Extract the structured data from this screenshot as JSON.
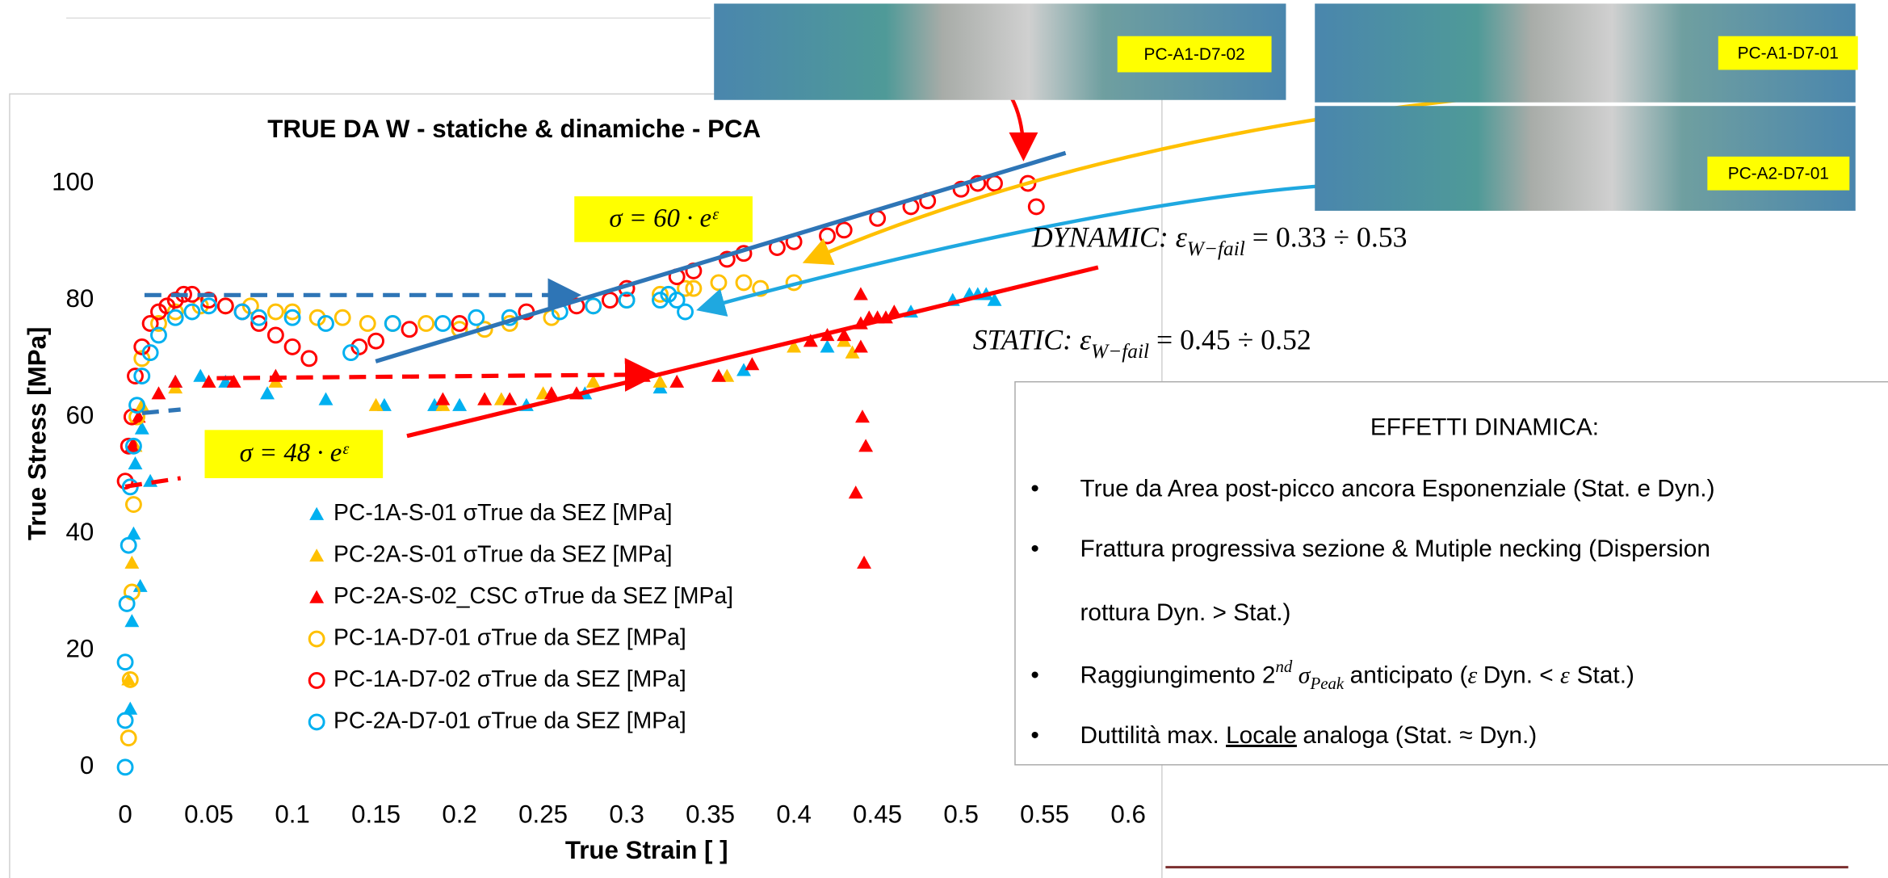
{
  "chart_data": {
    "type": "scatter",
    "title": "TRUE DA W - statiche & dinamiche - PCA",
    "x_label": "True Strain [  ]",
    "y_label": "True Stress [MPa]",
    "xlim": [
      0,
      0.6
    ],
    "ylim": [
      0,
      105
    ],
    "xticks": [
      0,
      0.05,
      0.1,
      0.15,
      0.2,
      0.25,
      0.3,
      0.35,
      0.4,
      0.45,
      0.5,
      0.55,
      0.6
    ],
    "yticks": [
      0,
      20,
      40,
      60,
      80,
      100
    ],
    "grid": false,
    "series": [
      {
        "name": "PC-1A-S-01 σTrue da SEZ [MPa]",
        "color": "#00b0f0",
        "marker": "triangle",
        "x": [
          0.003,
          0.004,
          0.005,
          0.006,
          0.009,
          0.01,
          0.015,
          0.03,
          0.045,
          0.06,
          0.085,
          0.12,
          0.155,
          0.185,
          0.2,
          0.24,
          0.275,
          0.32,
          0.37,
          0.42,
          0.47,
          0.495,
          0.505,
          0.51,
          0.515,
          0.52
        ],
        "y": [
          10,
          25,
          40,
          52,
          31,
          58,
          49,
          66,
          67,
          66,
          64,
          63,
          62,
          62,
          62,
          62,
          64,
          65,
          68,
          72,
          78,
          80,
          81,
          81,
          81,
          80
        ]
      },
      {
        "name": "PC-2A-S-01 σTrue da SEZ [MPa]",
        "color": "#ffc000",
        "marker": "triangle",
        "x": [
          0.002,
          0.004,
          0.006,
          0.01,
          0.03,
          0.05,
          0.09,
          0.15,
          0.19,
          0.215,
          0.225,
          0.25,
          0.28,
          0.32,
          0.36,
          0.4,
          0.43,
          0.435
        ],
        "y": [
          15,
          35,
          55,
          62,
          65,
          66,
          66,
          62,
          62,
          63,
          63,
          64,
          66,
          66,
          67,
          72,
          73,
          71
        ]
      },
      {
        "name": "PC-2A-S-02_CSC σTrue da SEZ [MPa]",
        "color": "#ff0000",
        "marker": "triangle",
        "x": [
          0.004,
          0.008,
          0.02,
          0.03,
          0.05,
          0.065,
          0.09,
          0.19,
          0.215,
          0.23,
          0.255,
          0.27,
          0.31,
          0.33,
          0.355,
          0.375,
          0.41,
          0.42,
          0.43,
          0.44,
          0.445,
          0.45,
          0.455,
          0.46,
          0.44,
          0.44,
          0.441,
          0.443,
          0.437,
          0.442
        ],
        "y": [
          55,
          60,
          64,
          66,
          66,
          66,
          67,
          63,
          63,
          63,
          64,
          64,
          67,
          66,
          67,
          69,
          73,
          74,
          74,
          76,
          77,
          77,
          77,
          78,
          81,
          72,
          60,
          55,
          47,
          35
        ]
      },
      {
        "name": "PC-1A-D7-01 σTrue da SEZ [MPa]",
        "color": "#ffc000",
        "marker": "circle",
        "x": [
          0.002,
          0.003,
          0.004,
          0.005,
          0.007,
          0.01,
          0.02,
          0.03,
          0.045,
          0.06,
          0.075,
          0.09,
          0.1,
          0.115,
          0.13,
          0.145,
          0.16,
          0.18,
          0.2,
          0.215,
          0.23,
          0.255,
          0.28,
          0.3,
          0.32,
          0.335,
          0.34,
          0.355,
          0.37,
          0.38,
          0.4
        ],
        "y": [
          5,
          15,
          30,
          45,
          60,
          70,
          76,
          78,
          79,
          79,
          79,
          78,
          78,
          77,
          77,
          76,
          76,
          76,
          75,
          75,
          76,
          77,
          79,
          80,
          81,
          82,
          82,
          83,
          83,
          82,
          83
        ]
      },
      {
        "name": "PC-1A-D7-02 σTrue da SEZ [MPa]",
        "color": "#ff0000",
        "marker": "circle",
        "x": [
          0,
          0.002,
          0.004,
          0.006,
          0.01,
          0.015,
          0.02,
          0.025,
          0.03,
          0.035,
          0.04,
          0.05,
          0.06,
          0.07,
          0.08,
          0.09,
          0.1,
          0.11,
          0.14,
          0.15,
          0.17,
          0.2,
          0.24,
          0.27,
          0.29,
          0.3,
          0.33,
          0.34,
          0.36,
          0.37,
          0.39,
          0.4,
          0.42,
          0.43,
          0.45,
          0.47,
          0.48,
          0.5,
          0.51,
          0.52,
          0.54,
          0.545
        ],
        "y": [
          49,
          55,
          60,
          67,
          72,
          76,
          78,
          79,
          80,
          81,
          81,
          80,
          79,
          78,
          76,
          74,
          72,
          70,
          72,
          73,
          75,
          76,
          78,
          79,
          80,
          82,
          84,
          85,
          87,
          88,
          89,
          90,
          91,
          92,
          94,
          96,
          97,
          99,
          100,
          100,
          100,
          96
        ]
      },
      {
        "name": "PC-2A-D7-01   σTrue da SEZ [MPa]",
        "color": "#00b0f0",
        "marker": "circle",
        "x": [
          0,
          0,
          0,
          0.001,
          0.002,
          0.003,
          0.005,
          0.007,
          0.01,
          0.015,
          0.02,
          0.03,
          0.04,
          0.05,
          0.07,
          0.08,
          0.1,
          0.12,
          0.135,
          0.16,
          0.19,
          0.21,
          0.23,
          0.26,
          0.28,
          0.3,
          0.32,
          0.325,
          0.33,
          0.335
        ],
        "y": [
          0,
          8,
          18,
          28,
          38,
          48,
          55,
          62,
          67,
          71,
          74,
          77,
          78,
          79,
          78,
          77,
          77,
          76,
          71,
          76,
          76,
          77,
          77,
          78,
          79,
          80,
          80,
          81,
          80,
          78
        ]
      }
    ],
    "annotations": [
      "σ = 60 · eᵋ",
      "σ = 48 · eᵋ"
    ]
  },
  "photos": [
    "PC-A1-D7-02",
    "PC-A1-D7-01",
    "PC-A2-D7-01"
  ],
  "strain_notes": {
    "dynamic": {
      "label": "DYNAMIC:",
      "symbol": "ε",
      "subscript": "W−fail",
      "value": "= 0.33 ÷ 0.53"
    },
    "static": {
      "label": "STATIC:",
      "symbol": "ε",
      "subscript": "W−fail",
      "value": "= 0.45 ÷ 0.52"
    }
  },
  "text_box": {
    "title": "EFFETTI DINAMICA:",
    "bullets": [
      "True da Area post-picco ancora Esponenziale (Stat. e Dyn.)",
      [
        "Frattura progressiva sezione & Mutiple necking (Dispersion",
        "rottura Dyn. > Stat.)"
      ],
      [
        "Raggiungimento 2",
        "nd",
        "σ",
        "Peak",
        "anticipato (",
        "ε",
        "Dyn. < ",
        "ε",
        "Stat.)"
      ],
      [
        "Duttilità max. ",
        "Locale",
        "analoga (Stat. ≈ Dyn.)"
      ]
    ]
  }
}
